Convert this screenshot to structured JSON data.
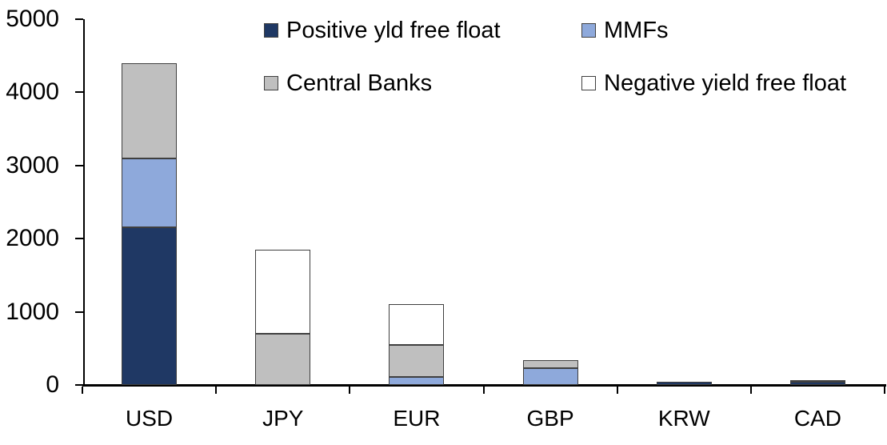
{
  "chart_data": {
    "type": "bar",
    "stacked": true,
    "title": "",
    "xlabel": "",
    "ylabel": "",
    "categories": [
      "USD",
      "JPY",
      "EUR",
      "GBP",
      "KRW",
      "CAD"
    ],
    "series": [
      {
        "name": "Positive yld free float",
        "color": "#1F3864",
        "values": [
          2150,
          0,
          0,
          0,
          40,
          40
        ]
      },
      {
        "name": "MMFs",
        "color": "#8EA9DB",
        "values": [
          950,
          0,
          110,
          230,
          0,
          0
        ]
      },
      {
        "name": "Central Banks",
        "color": "#BFBFBF",
        "values": [
          1300,
          700,
          440,
          110,
          0,
          30
        ]
      },
      {
        "name": "Negative yield free float",
        "color": "#FFFFFF",
        "values": [
          0,
          1150,
          560,
          0,
          0,
          0
        ]
      }
    ],
    "totals_by_category": [
      4400,
      1850,
      1110,
      340,
      40,
      70
    ],
    "ylim": [
      0,
      5000
    ],
    "yticks": [
      0,
      1000,
      2000,
      3000,
      4000,
      5000
    ],
    "grid": false,
    "legend_position": "top",
    "legend_columns": 2,
    "axis_color": "#000000",
    "segment_border_color": "#3f3f3f",
    "background_color": "#ffffff"
  }
}
